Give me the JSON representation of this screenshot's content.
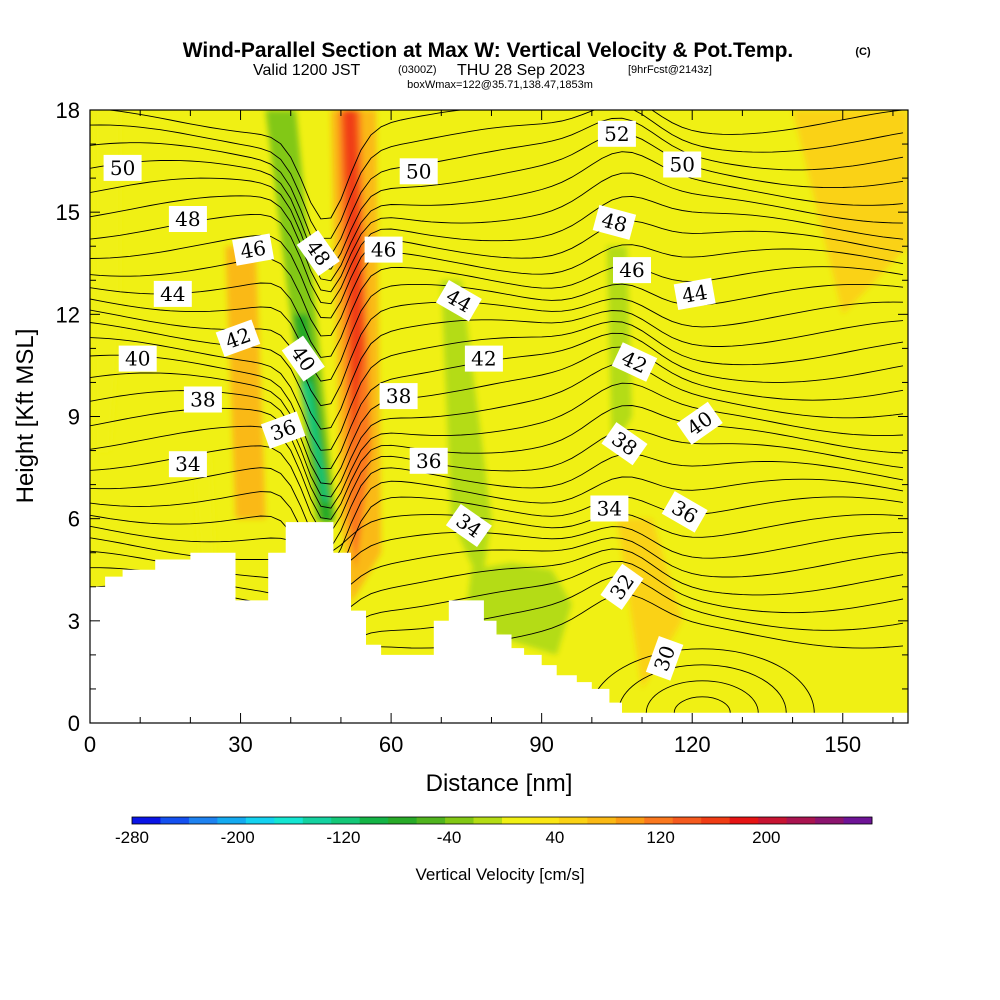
{
  "title": {
    "main": "Wind-Parallel Section at Max W: Vertical Velocity & Pot.Temp.",
    "copyright": "(C)",
    "valid_prefix": "Valid 1200 JST",
    "valid_utc": "(0300Z)",
    "valid_date": "THU 28 Sep 2023",
    "forecast": "[9hrFcst@2143z]",
    "box_info": "boxWmax=122@35.71,138.47,1853m"
  },
  "colorbar": {
    "title": "Vertical Velocity [cm/s]",
    "tick_labels": [
      "-280",
      "-200",
      "-120",
      "-40",
      "40",
      "120",
      "200"
    ],
    "colors": [
      "#0a14e6",
      "#1450f0",
      "#1e82f0",
      "#14aaf0",
      "#14d2f0",
      "#14e6d2",
      "#14d2a0",
      "#14c878",
      "#14b446",
      "#28aa28",
      "#50b41e",
      "#82c814",
      "#b4dc14",
      "#f0f014",
      "#fae614",
      "#fad214",
      "#fab914",
      "#fa9b14",
      "#fa781e",
      "#f55a1e",
      "#f03c14",
      "#e61414",
      "#c81432",
      "#aa1450",
      "#8c146e",
      "#6e1496"
    ]
  },
  "chart_data": {
    "type": "heatmap",
    "title": "Wind-Parallel Section at Max W: Vertical Velocity & Pot.Temp.",
    "xlabel": "Distance [nm]",
    "ylabel": "Height [Kft MSL]",
    "xlim": [
      0,
      163
    ],
    "ylim": [
      0,
      18
    ],
    "x_ticks": [
      0,
      30,
      60,
      90,
      120,
      150
    ],
    "y_ticks": [
      0,
      3,
      6,
      9,
      12,
      15,
      18
    ],
    "filled_field": "Vertical Velocity [cm/s]",
    "filled_levels": [
      -280,
      -260,
      -240,
      -220,
      -200,
      -180,
      -160,
      -140,
      -120,
      -100,
      -80,
      -60,
      -40,
      -20,
      20,
      40,
      60,
      80,
      100,
      120,
      140,
      160,
      180,
      200,
      220,
      240,
      260,
      280
    ],
    "contour_field": "Pot.Temp.",
    "contour_labels": [
      {
        "text": "50",
        "x": 6.5,
        "y": 16.3,
        "angle": 0
      },
      {
        "text": "48",
        "x": 19.5,
        "y": 14.8,
        "angle": 0
      },
      {
        "text": "46",
        "x": 32.5,
        "y": 13.9,
        "angle": -10
      },
      {
        "text": "48",
        "x": 45.5,
        "y": 13.8,
        "angle": 55
      },
      {
        "text": "46",
        "x": 58.5,
        "y": 13.9,
        "angle": 0
      },
      {
        "text": "50",
        "x": 65.5,
        "y": 16.2,
        "angle": 0
      },
      {
        "text": "52",
        "x": 105,
        "y": 17.3,
        "angle": 0
      },
      {
        "text": "50",
        "x": 118,
        "y": 16.4,
        "angle": 0
      },
      {
        "text": "48",
        "x": 104.5,
        "y": 14.7,
        "angle": 15
      },
      {
        "text": "46",
        "x": 108,
        "y": 13.3,
        "angle": 0
      },
      {
        "text": "44",
        "x": 120.5,
        "y": 12.6,
        "angle": -10
      },
      {
        "text": "44",
        "x": 16.5,
        "y": 12.6,
        "angle": 0
      },
      {
        "text": "44",
        "x": 73.5,
        "y": 12.4,
        "angle": 30
      },
      {
        "text": "42",
        "x": 29.5,
        "y": 11.3,
        "angle": -20
      },
      {
        "text": "40",
        "x": 42.5,
        "y": 10.7,
        "angle": 55
      },
      {
        "text": "42",
        "x": 78.5,
        "y": 10.7,
        "angle": 0
      },
      {
        "text": "42",
        "x": 108.5,
        "y": 10.6,
        "angle": 25
      },
      {
        "text": "40",
        "x": 9.5,
        "y": 10.7,
        "angle": 0
      },
      {
        "text": "38",
        "x": 22.5,
        "y": 9.5,
        "angle": 0
      },
      {
        "text": "38",
        "x": 61.5,
        "y": 9.6,
        "angle": 0
      },
      {
        "text": "40",
        "x": 121.5,
        "y": 8.8,
        "angle": -35
      },
      {
        "text": "36",
        "x": 38.5,
        "y": 8.6,
        "angle": -20
      },
      {
        "text": "38",
        "x": 106.5,
        "y": 8.2,
        "angle": 35
      },
      {
        "text": "34",
        "x": 19.5,
        "y": 7.6,
        "angle": 0
      },
      {
        "text": "36",
        "x": 67.5,
        "y": 7.7,
        "angle": 0
      },
      {
        "text": "34",
        "x": 75.5,
        "y": 5.8,
        "angle": 35
      },
      {
        "text": "34",
        "x": 103.5,
        "y": 6.3,
        "angle": 0
      },
      {
        "text": "36",
        "x": 118.5,
        "y": 6.2,
        "angle": 30
      },
      {
        "text": "32",
        "x": 106,
        "y": 4.0,
        "angle": -55
      },
      {
        "text": "30",
        "x": 114.5,
        "y": 1.9,
        "angle": -70
      }
    ],
    "terrain_top": [
      [
        0,
        4.0
      ],
      [
        3,
        4.0
      ],
      [
        3,
        4.3
      ],
      [
        6.5,
        4.3
      ],
      [
        6.5,
        4.5
      ],
      [
        13,
        4.5
      ],
      [
        13,
        4.8
      ],
      [
        20,
        4.8
      ],
      [
        20,
        5.0
      ],
      [
        29,
        5.0
      ],
      [
        29,
        3.6
      ],
      [
        35.5,
        3.6
      ],
      [
        35.5,
        5.0
      ],
      [
        39,
        5.0
      ],
      [
        39,
        5.9
      ],
      [
        48.5,
        5.9
      ],
      [
        48.5,
        5.0
      ],
      [
        52,
        5.0
      ],
      [
        52,
        3.3
      ],
      [
        55,
        3.3
      ],
      [
        55,
        2.3
      ],
      [
        58,
        2.3
      ],
      [
        58,
        2.0
      ],
      [
        68.5,
        2.0
      ],
      [
        68.5,
        3.0
      ],
      [
        71.5,
        3.0
      ],
      [
        71.5,
        3.6
      ],
      [
        78.5,
        3.6
      ],
      [
        78.5,
        3.0
      ],
      [
        81,
        3.0
      ],
      [
        81,
        2.6
      ],
      [
        84,
        2.6
      ],
      [
        84,
        2.2
      ],
      [
        86.5,
        2.2
      ],
      [
        86.5,
        2.0
      ],
      [
        90,
        2.0
      ],
      [
        90,
        1.7
      ],
      [
        93,
        1.7
      ],
      [
        93,
        1.4
      ],
      [
        97,
        1.4
      ],
      [
        97,
        1.2
      ],
      [
        100,
        1.2
      ],
      [
        100,
        1.0
      ],
      [
        103.5,
        1.0
      ],
      [
        103.5,
        0.6
      ],
      [
        106,
        0.6
      ],
      [
        106,
        0.3
      ],
      [
        109,
        0.3
      ],
      [
        109,
        0.3
      ],
      [
        163,
        0.3
      ]
    ],
    "velocity_features": [
      {
        "name": "updraft",
        "value": 122,
        "base": [
          52.5,
          2.5
        ],
        "top": [
          50.5,
          18.0
        ]
      },
      {
        "name": "downdraft",
        "value": -140,
        "base": [
          47.5,
          5.9
        ],
        "top": [
          37.0,
          18.0
        ]
      }
    ]
  }
}
